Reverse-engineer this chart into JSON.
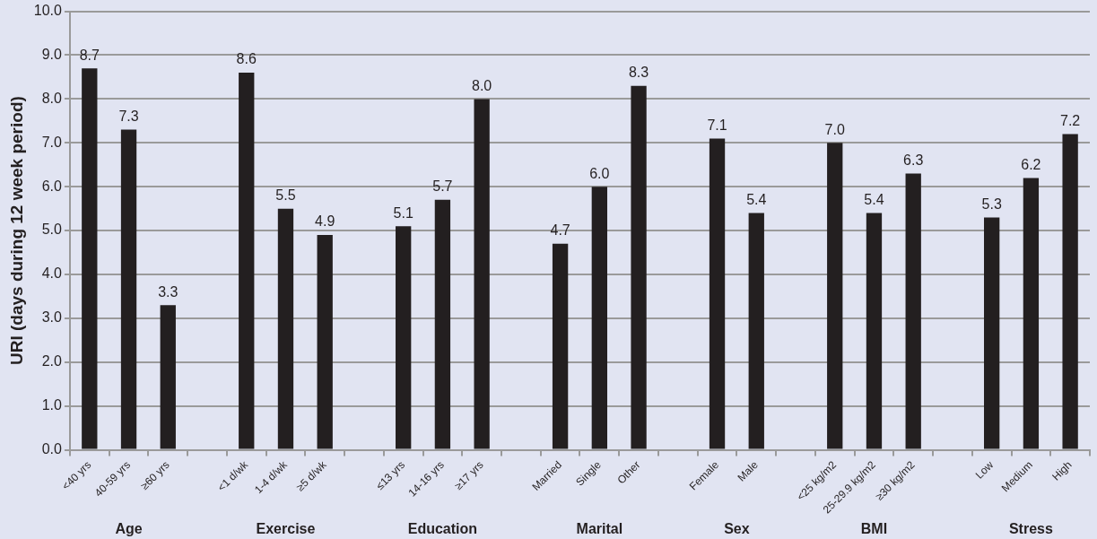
{
  "chart_data": {
    "type": "bar",
    "ylabel": "URI (days during 12 week period)",
    "categories": [
      "<40 yrs",
      "40-59 yrs",
      "≥60 yrs",
      null,
      "<1 d/wk",
      "1-4 d/wk",
      "≥5 d/wk",
      null,
      "≤13 yrs",
      "14-16 yrs",
      "≥17 yrs",
      null,
      "Married",
      "Single",
      "Other",
      null,
      "Female",
      "Male",
      null,
      "<25 kg/m2",
      "25-29.9 kg/m2",
      "≥30 kg/m2",
      null,
      "Low",
      "Medium",
      "High"
    ],
    "values": [
      8.7,
      7.3,
      3.3,
      null,
      8.6,
      5.5,
      4.9,
      null,
      5.1,
      5.7,
      8.0,
      null,
      4.7,
      6.0,
      8.3,
      null,
      7.1,
      5.4,
      null,
      7.0,
      5.4,
      6.3,
      null,
      5.3,
      6.2,
      7.2
    ],
    "color": "#231f20",
    "ylim": [
      0,
      10
    ],
    "yticks": [
      {
        "value": 0,
        "label": "0.0"
      },
      {
        "value": 1,
        "label": "1.0"
      },
      {
        "value": 2,
        "label": "2.0"
      },
      {
        "value": 3,
        "label": "3.0"
      },
      {
        "value": 4,
        "label": "4.0"
      },
      {
        "value": 5,
        "label": "5.0"
      },
      {
        "value": 6,
        "label": "6.0"
      },
      {
        "value": 7,
        "label": "7.0"
      },
      {
        "value": 8,
        "label": "8.0"
      },
      {
        "value": 9,
        "label": "9.0"
      },
      {
        "value": 10,
        "label": "10.0"
      }
    ],
    "value_labels": [
      "8.7",
      "7.3",
      "3.3",
      null,
      "8.6",
      "5.5",
      "4.9",
      null,
      "5.1",
      "5.7",
      "8.0",
      null,
      "4.7",
      "6.0",
      "8.3",
      null,
      "7.1",
      "5.4",
      null,
      "7.0",
      "5.4",
      "6.3",
      null,
      "5.3",
      "6.2",
      "7.2"
    ],
    "grid": "y",
    "legend": false,
    "annotations": [
      "Age",
      "Exercise",
      "Education",
      "Marital",
      "Sex",
      "BMI",
      "Stress"
    ]
  }
}
